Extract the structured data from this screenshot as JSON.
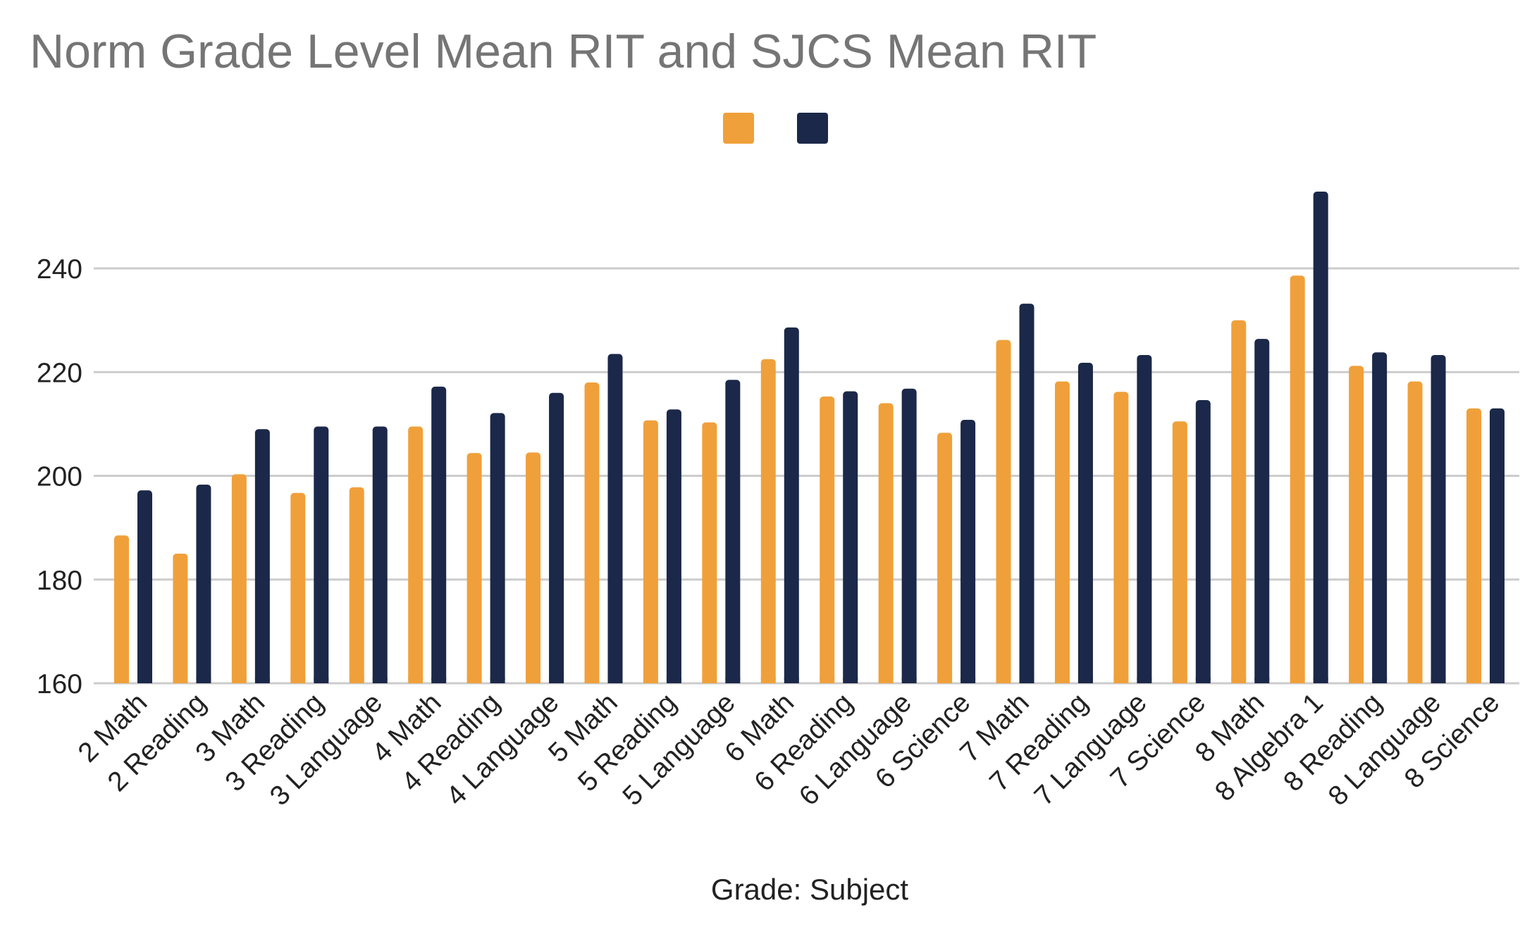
{
  "chart_data": {
    "type": "bar",
    "title": "Norm Grade Level Mean RIT and SJCS Mean RIT",
    "xlabel": "Grade: Subject",
    "ylabel": "",
    "ylim": [
      160,
      250
    ],
    "yticks": [
      160,
      180,
      200,
      220,
      240
    ],
    "grid": true,
    "legend_position": "top-center",
    "categories": [
      "2 Math",
      "2 Reading",
      "3 Math",
      "3 Reading",
      "3 Language",
      "4 Math",
      "4 Reading",
      "4 Language",
      "5 Math",
      "5 Reading",
      "5 Language",
      "6 Math",
      "6 Reading",
      "6 Language",
      "6 Science",
      "7 Math",
      "7 Reading",
      "7 Language",
      "7 Science",
      "8 Math",
      "8 Algebra 1",
      "8 Reading",
      "8 Language",
      "8 Science"
    ],
    "series": [
      {
        "name": "",
        "color": "#F0A03A",
        "values": [
          188.5,
          185,
          200.3,
          196.7,
          197.8,
          209.5,
          204.4,
          204.5,
          218,
          210.7,
          210.3,
          222.5,
          215.3,
          214,
          208.3,
          226.2,
          218.2,
          216.2,
          210.5,
          230,
          238.6,
          221.2,
          218.2,
          213
        ]
      },
      {
        "name": "",
        "color": "#1B2849",
        "values": [
          197.2,
          198.3,
          209,
          209.5,
          209.5,
          217.2,
          212.1,
          216,
          223.5,
          212.8,
          218.5,
          228.6,
          216.3,
          216.8,
          210.8,
          233.2,
          221.8,
          223.3,
          214.6,
          226.4,
          255,
          223.8,
          223.3,
          213
        ]
      }
    ]
  }
}
